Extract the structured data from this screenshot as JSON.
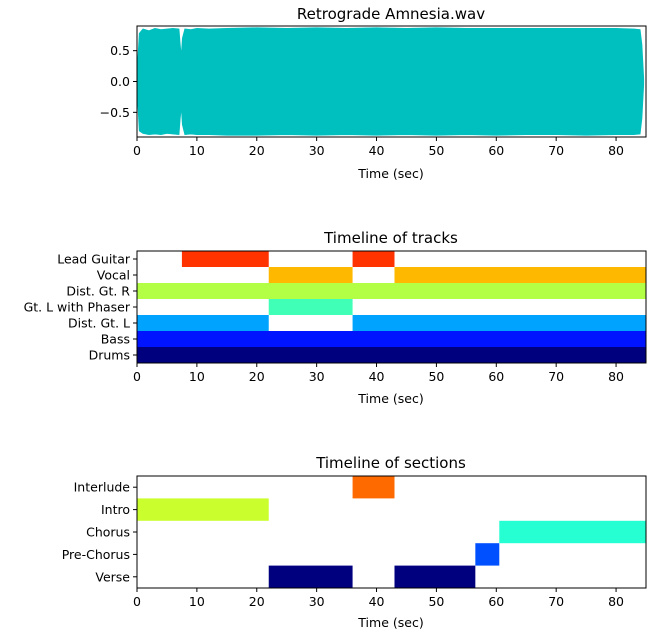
{
  "chart_data": [
    {
      "type": "area",
      "title": "Retrograde Amnesia.wav",
      "xlabel": "Time (sec)",
      "ylabel": "",
      "xlim": [
        0,
        85
      ],
      "ylim": [
        -0.9,
        0.9
      ],
      "x_ticks": [
        0,
        10,
        20,
        30,
        40,
        50,
        60,
        70,
        80
      ],
      "y_ticks": [
        0.5,
        0.0,
        -0.5
      ],
      "y_tick_labels": [
        "0.5",
        "0.0",
        "−0.5"
      ],
      "color": "#00bfbf",
      "envelope": {
        "x": [
          0,
          0.4,
          1,
          2,
          3,
          4,
          5,
          6,
          7,
          7.2,
          7.4,
          7.6,
          8,
          9,
          10,
          12,
          15,
          20,
          25,
          30,
          35,
          40,
          45,
          50,
          55,
          60,
          65,
          70,
          75,
          80,
          83,
          84,
          84.3,
          84.6
        ],
        "upper": [
          0.1,
          0.78,
          0.85,
          0.82,
          0.86,
          0.84,
          0.85,
          0.86,
          0.85,
          0.6,
          0.4,
          0.7,
          0.85,
          0.84,
          0.86,
          0.85,
          0.86,
          0.87,
          0.86,
          0.87,
          0.86,
          0.87,
          0.86,
          0.87,
          0.86,
          0.86,
          0.86,
          0.86,
          0.86,
          0.86,
          0.85,
          0.84,
          0.6,
          0.05
        ],
        "lower": [
          -0.1,
          -0.8,
          -0.84,
          -0.86,
          -0.85,
          -0.86,
          -0.84,
          -0.85,
          -0.86,
          -0.6,
          -0.4,
          -0.7,
          -0.86,
          -0.85,
          -0.86,
          -0.86,
          -0.87,
          -0.87,
          -0.86,
          -0.87,
          -0.86,
          -0.87,
          -0.86,
          -0.87,
          -0.86,
          -0.87,
          -0.86,
          -0.86,
          -0.87,
          -0.86,
          -0.86,
          -0.85,
          -0.6,
          -0.05
        ]
      }
    },
    {
      "type": "heatmap",
      "title": "Timeline of tracks",
      "xlabel": "Time (sec)",
      "xlim": [
        0,
        85
      ],
      "x_ticks": [
        0,
        10,
        20,
        30,
        40,
        50,
        60,
        70,
        80
      ],
      "rows": [
        "Lead Guitar",
        "Vocal",
        "Dist. Gt. R",
        "Gt. L with Phaser",
        "Dist. Gt. L",
        "Bass",
        "Drums"
      ],
      "segments": [
        {
          "row": "Lead Guitar",
          "start": 7.5,
          "end": 22,
          "color": "#ff3300"
        },
        {
          "row": "Lead Guitar",
          "start": 36,
          "end": 43,
          "color": "#ff3300"
        },
        {
          "row": "Vocal",
          "start": 22,
          "end": 36,
          "color": "#ffb800"
        },
        {
          "row": "Vocal",
          "start": 43,
          "end": 85,
          "color": "#ffb800"
        },
        {
          "row": "Dist. Gt. R",
          "start": 0,
          "end": 85,
          "color": "#b2ff46"
        },
        {
          "row": "Gt. L with Phaser",
          "start": 22,
          "end": 36,
          "color": "#40ffb6"
        },
        {
          "row": "Dist. Gt. L",
          "start": 0,
          "end": 22,
          "color": "#00a4ff"
        },
        {
          "row": "Dist. Gt. L",
          "start": 36,
          "end": 85,
          "color": "#00a4ff"
        },
        {
          "row": "Bass",
          "start": 0,
          "end": 85,
          "color": "#0014ff"
        },
        {
          "row": "Drums",
          "start": 0,
          "end": 85,
          "color": "#00007f"
        }
      ]
    },
    {
      "type": "heatmap",
      "title": "Timeline of sections",
      "xlabel": "Time (sec)",
      "xlim": [
        0,
        85
      ],
      "x_ticks": [
        0,
        10,
        20,
        30,
        40,
        50,
        60,
        70,
        80
      ],
      "rows": [
        "Interlude",
        "Intro",
        "Chorus",
        "Pre-Chorus",
        "Verse"
      ],
      "segments": [
        {
          "row": "Interlude",
          "start": 36,
          "end": 43,
          "color": "#ff6a00"
        },
        {
          "row": "Intro",
          "start": 0,
          "end": 22,
          "color": "#caff2d"
        },
        {
          "row": "Chorus",
          "start": 60.5,
          "end": 85,
          "color": "#26ffd1"
        },
        {
          "row": "Pre-Chorus",
          "start": 56.5,
          "end": 60.5,
          "color": "#0050ff"
        },
        {
          "row": "Verse",
          "start": 22,
          "end": 36,
          "color": "#00007f"
        },
        {
          "row": "Verse",
          "start": 43,
          "end": 56.5,
          "color": "#00007f"
        }
      ]
    }
  ]
}
